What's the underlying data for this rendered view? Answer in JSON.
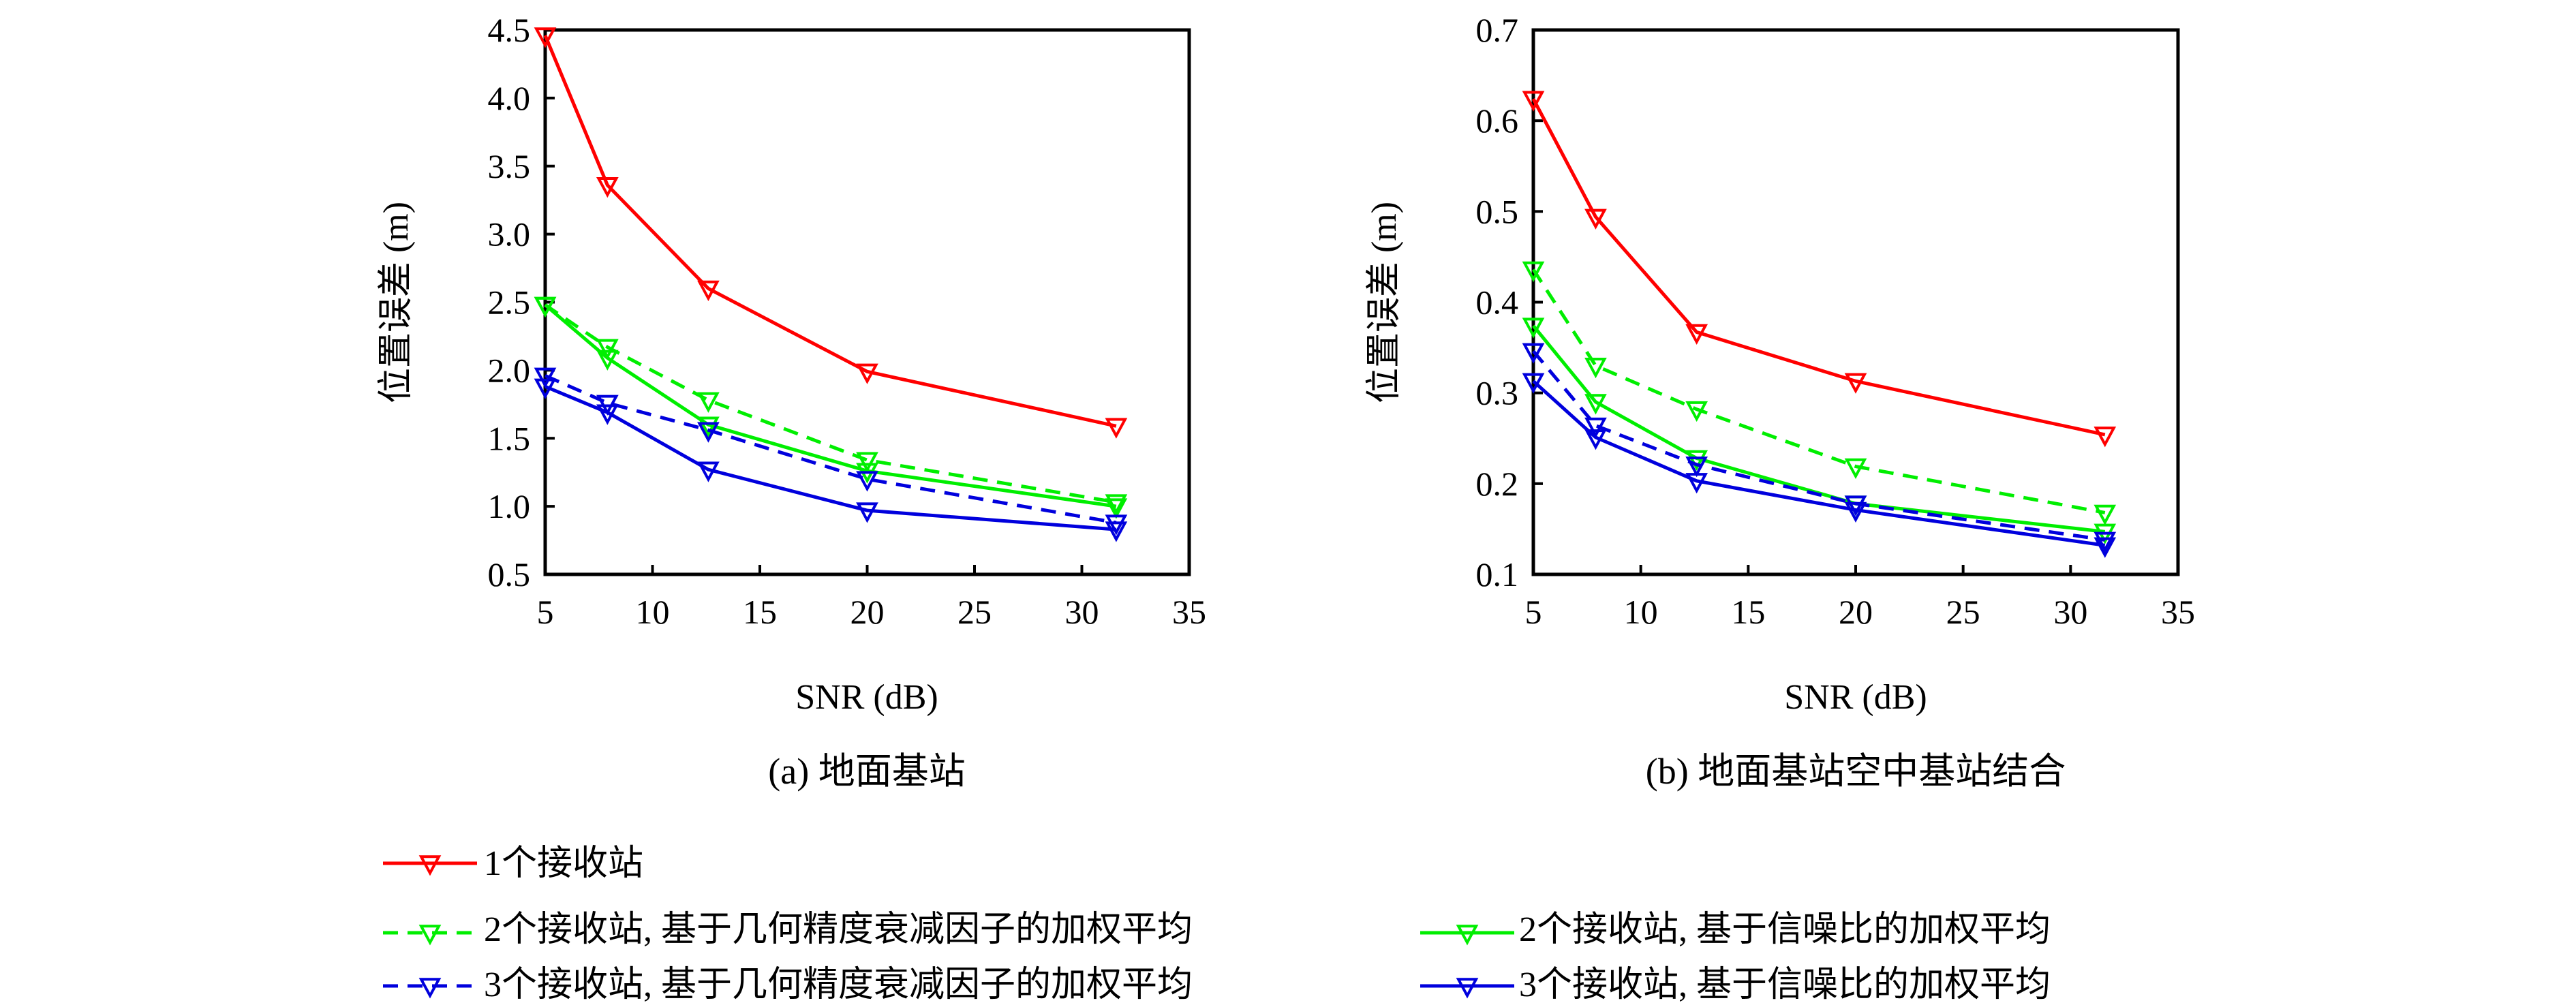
{
  "colors": {
    "red": "#ff0000",
    "green": "#00ee00",
    "blue": "#0000dd"
  },
  "marker": "triangle-down-hollow",
  "chart_data": [
    {
      "type": "line",
      "caption": "(a) 地面基站",
      "xlabel": "SNR (dB)",
      "ylabel": "位置误差 (m)",
      "xlim": [
        5,
        35
      ],
      "ylim": [
        0.5,
        4.5
      ],
      "xticks": [
        5,
        10,
        15,
        20,
        25,
        30,
        35
      ],
      "yticks": [
        "0.5",
        "1.0",
        "1.5",
        "2.0",
        "2.5",
        "3.0",
        "3.5",
        "4.0",
        "4.5"
      ],
      "grid": false,
      "x": [
        5,
        7.9,
        12.6,
        20,
        31.6
      ],
      "series": [
        {
          "name": "1个接收站",
          "color": "#ff0000",
          "dash": "solid",
          "values": [
            4.46,
            3.36,
            2.6,
            1.99,
            1.59
          ]
        },
        {
          "name": "2个接收站, 基于几何精度衰减因子的加权平均",
          "color": "#00ee00",
          "dash": "dashed",
          "values": [
            2.48,
            2.17,
            1.78,
            1.34,
            1.03
          ]
        },
        {
          "name": "2个接收站, 基于信噪比的加权平均",
          "color": "#00ee00",
          "dash": "solid",
          "values": [
            2.48,
            2.09,
            1.6,
            1.26,
            1.0
          ]
        },
        {
          "name": "3个接收站, 基于几何精度衰减因子的加权平均",
          "color": "#0000dd",
          "dash": "dashed",
          "values": [
            1.96,
            1.76,
            1.56,
            1.2,
            0.88
          ]
        },
        {
          "name": "3个接收站, 基于信噪比的加权平均",
          "color": "#0000dd",
          "dash": "solid",
          "values": [
            1.88,
            1.69,
            1.27,
            0.97,
            0.83
          ]
        }
      ]
    },
    {
      "type": "line",
      "caption": "(b) 地面基站空中基站结合",
      "xlabel": "SNR (dB)",
      "ylabel": "位置误差 (m)",
      "xlim": [
        5,
        35
      ],
      "ylim": [
        0.1,
        0.7
      ],
      "xticks": [
        5,
        10,
        15,
        20,
        25,
        30,
        35
      ],
      "yticks": [
        "0.1",
        "0.2",
        "0.3",
        "0.4",
        "0.5",
        "0.6",
        "0.7"
      ],
      "grid": false,
      "x": [
        5,
        7.9,
        12.6,
        20,
        31.6
      ],
      "series": [
        {
          "name": "1个接收站",
          "color": "#ff0000",
          "dash": "solid",
          "values": [
            0.624,
            0.494,
            0.367,
            0.313,
            0.254
          ]
        },
        {
          "name": "2个接收站, 基于几何精度衰减因子的加权平均",
          "color": "#00ee00",
          "dash": "dashed",
          "values": [
            0.436,
            0.33,
            0.282,
            0.219,
            0.168
          ]
        },
        {
          "name": "2个接收站, 基于信噪比的加权平均",
          "color": "#00ee00",
          "dash": "solid",
          "values": [
            0.374,
            0.29,
            0.228,
            0.178,
            0.147
          ]
        },
        {
          "name": "3个接收站, 基于几何精度衰减因子的加权平均",
          "color": "#0000dd",
          "dash": "dashed",
          "values": [
            0.346,
            0.264,
            0.221,
            0.178,
            0.138
          ]
        },
        {
          "name": "3个接收站, 基于信噪比的加权平均",
          "color": "#0000dd",
          "dash": "solid",
          "values": [
            0.313,
            0.251,
            0.203,
            0.171,
            0.132
          ]
        }
      ]
    }
  ],
  "legend": {
    "placement": "bottom"
  }
}
